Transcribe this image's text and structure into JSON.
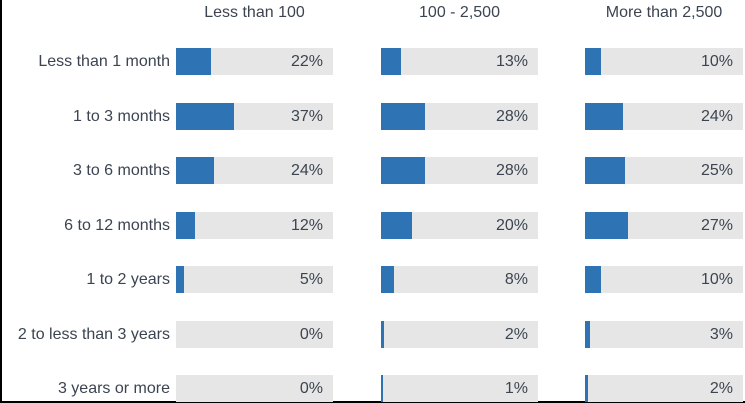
{
  "chart_data": {
    "type": "bar",
    "orientation": "horizontal",
    "title": "",
    "categories": [
      "Less than 1 month",
      "1 to 3 months",
      "3 to 6 months",
      "6 to 12 months",
      "1 to 2 years",
      "2 to less than 3 years",
      "3 years or more"
    ],
    "series": [
      {
        "name": "Less than 100",
        "values": [
          22,
          37,
          24,
          12,
          5,
          0,
          0
        ]
      },
      {
        "name": "100 - 2,500",
        "values": [
          13,
          28,
          28,
          20,
          8,
          2,
          1
        ]
      },
      {
        "name": "More than 2,500",
        "values": [
          10,
          24,
          25,
          27,
          10,
          3,
          2
        ]
      }
    ],
    "value_suffix": "%",
    "value_range": [
      0,
      100
    ],
    "layout_hints": {
      "column_headers_position": "top",
      "value_labels": "inside-right",
      "grid": false,
      "axes_shown": false
    },
    "colors": {
      "bar_fill": "#2E74B5",
      "bar_track": "#E6E6E6",
      "text": "#3B4450",
      "border_lines": "#000000",
      "background": "#FFFFFF"
    }
  }
}
